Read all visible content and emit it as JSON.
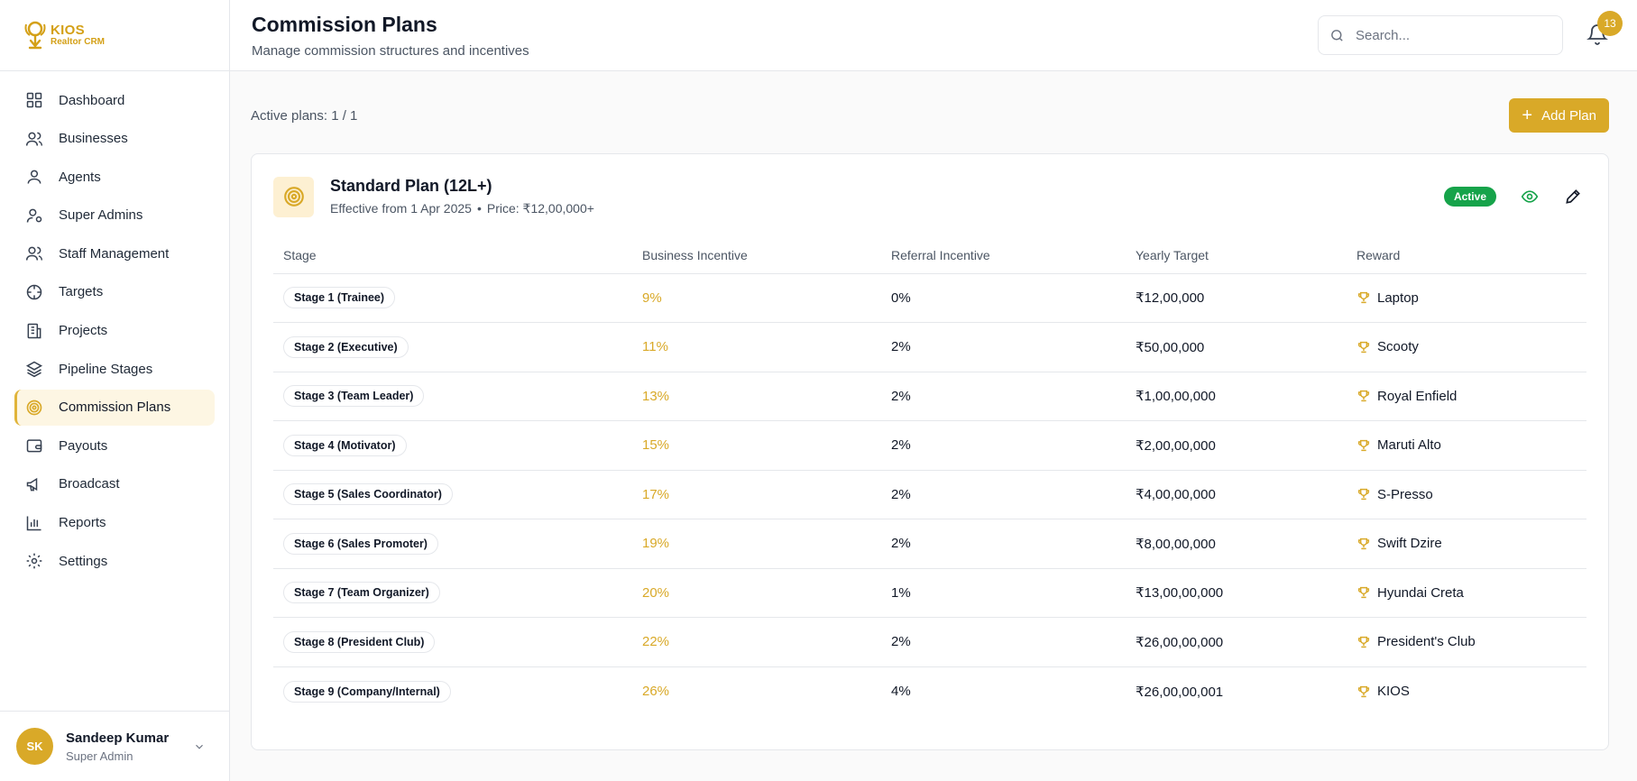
{
  "brand": {
    "name": "KIOS",
    "subtitle": "Realtor CRM"
  },
  "sidebar": {
    "items": [
      {
        "label": "Dashboard",
        "icon": "grid-icon"
      },
      {
        "label": "Businesses",
        "icon": "users-icon"
      },
      {
        "label": "Agents",
        "icon": "user-icon"
      },
      {
        "label": "Super Admins",
        "icon": "user-cog-icon"
      },
      {
        "label": "Staff Management",
        "icon": "users-icon"
      },
      {
        "label": "Targets",
        "icon": "crosshair-icon"
      },
      {
        "label": "Projects",
        "icon": "building-icon"
      },
      {
        "label": "Pipeline Stages",
        "icon": "layers-icon"
      },
      {
        "label": "Commission Plans",
        "icon": "target-icon",
        "active": true
      },
      {
        "label": "Payouts",
        "icon": "wallet-icon"
      },
      {
        "label": "Broadcast",
        "icon": "megaphone-icon"
      },
      {
        "label": "Reports",
        "icon": "bar-chart-icon"
      },
      {
        "label": "Settings",
        "icon": "gear-icon"
      }
    ]
  },
  "user": {
    "initials": "SK",
    "name": "Sandeep Kumar",
    "role": "Super Admin"
  },
  "header": {
    "title": "Commission Plans",
    "subtitle": "Manage commission structures and incentives",
    "search_placeholder": "Search...",
    "notifications": "13"
  },
  "toolbar": {
    "active_plans": "Active plans: 1 / 1",
    "add_label": "Add Plan"
  },
  "plan": {
    "name": "Standard Plan (12L+)",
    "effective": "Effective from 1 Apr 2025",
    "price": "Price: ₹12,00,000+",
    "status": "Active"
  },
  "table": {
    "columns": [
      "Stage",
      "Business Incentive",
      "Referral Incentive",
      "Yearly Target",
      "Reward"
    ],
    "rows": [
      {
        "stage": "Stage 1 (Trainee)",
        "business": "9%",
        "referral": "0%",
        "target": "₹12,00,000",
        "reward": "Laptop"
      },
      {
        "stage": "Stage 2 (Executive)",
        "business": "11%",
        "referral": "2%",
        "target": "₹50,00,000",
        "reward": "Scooty"
      },
      {
        "stage": "Stage 3 (Team Leader)",
        "business": "13%",
        "referral": "2%",
        "target": "₹1,00,00,000",
        "reward": "Royal Enfield"
      },
      {
        "stage": "Stage 4 (Motivator)",
        "business": "15%",
        "referral": "2%",
        "target": "₹2,00,00,000",
        "reward": "Maruti Alto"
      },
      {
        "stage": "Stage 5 (Sales Coordinator)",
        "business": "17%",
        "referral": "2%",
        "target": "₹4,00,00,000",
        "reward": "S-Presso"
      },
      {
        "stage": "Stage 6 (Sales Promoter)",
        "business": "19%",
        "referral": "2%",
        "target": "₹8,00,00,000",
        "reward": "Swift Dzire"
      },
      {
        "stage": "Stage 7 (Team Organizer)",
        "business": "20%",
        "referral": "1%",
        "target": "₹13,00,00,000",
        "reward": "Hyundai Creta"
      },
      {
        "stage": "Stage 8 (President Club)",
        "business": "22%",
        "referral": "2%",
        "target": "₹26,00,00,000",
        "reward": "President's Club"
      },
      {
        "stage": "Stage 9 (Company/Internal)",
        "business": "26%",
        "referral": "4%",
        "target": "₹26,00,00,001",
        "reward": "KIOS"
      }
    ]
  },
  "colors": {
    "accent": "#d9a928",
    "active_status": "#16a34a"
  }
}
